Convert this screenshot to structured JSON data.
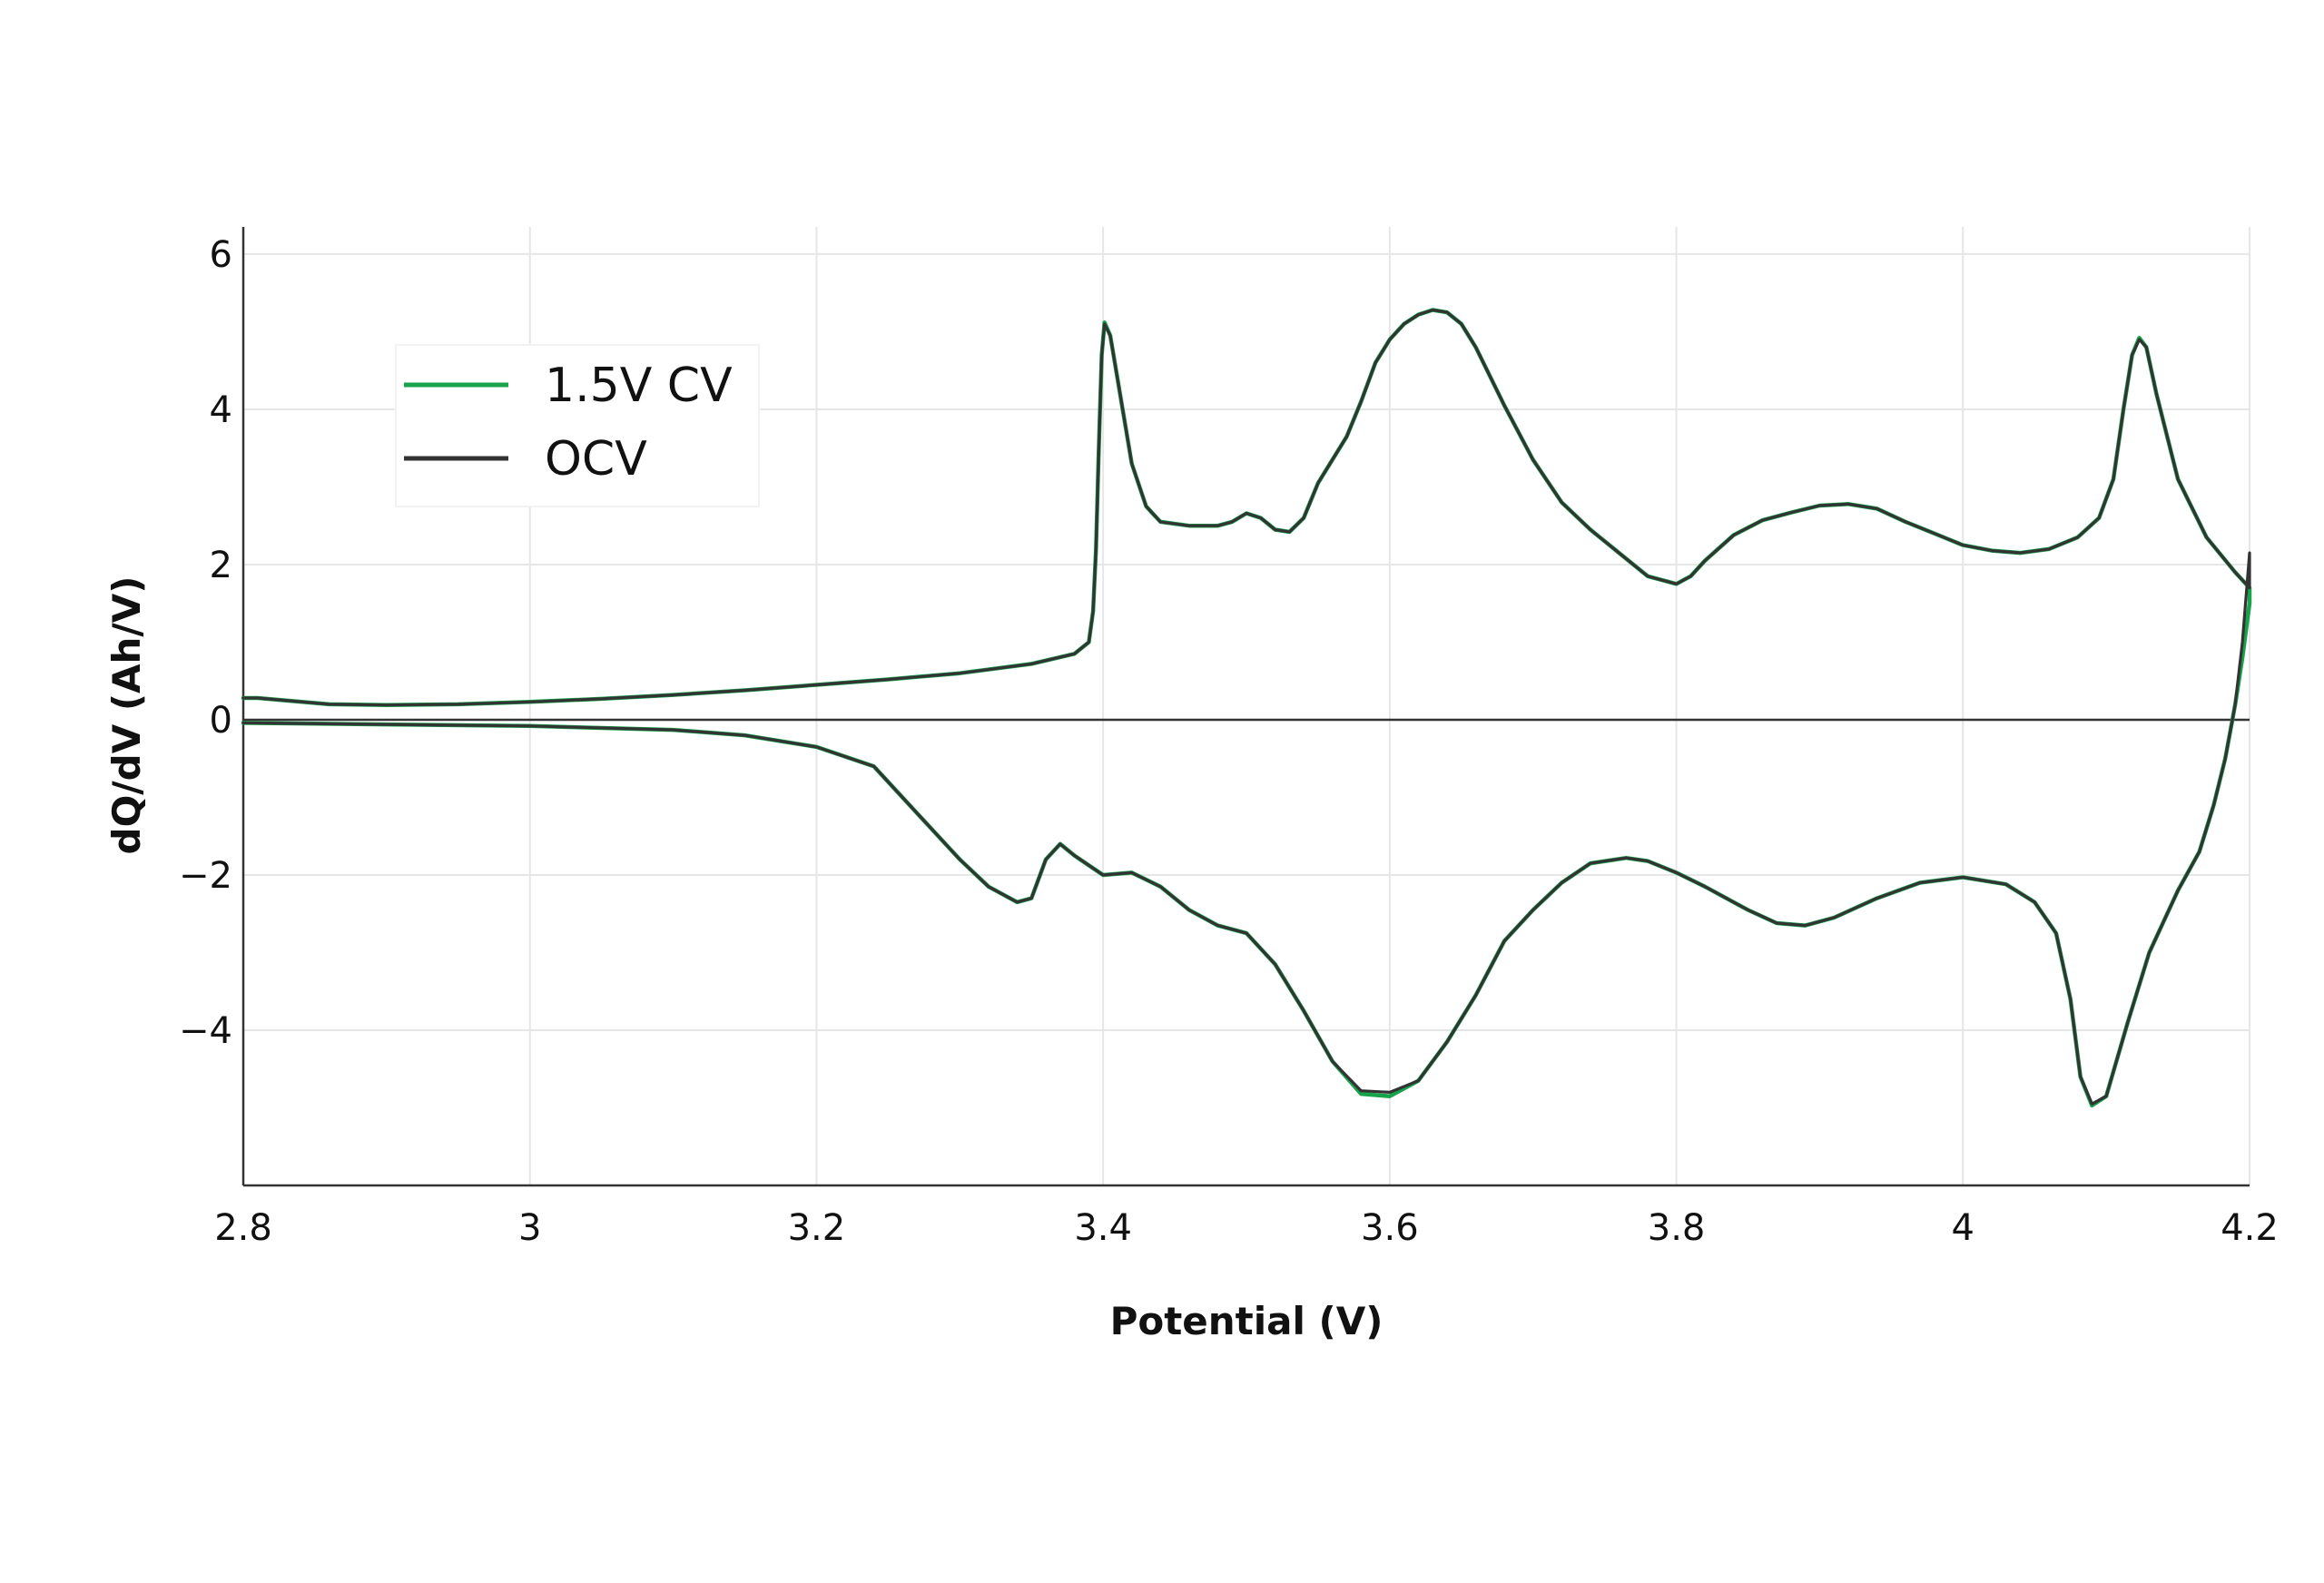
{
  "chart_data": {
    "type": "line",
    "title": "",
    "xlabel": "Potential (V)",
    "ylabel": "dQ/dV (Ah/V)",
    "xlim": [
      2.8,
      4.2
    ],
    "ylim": [
      -6,
      6.35
    ],
    "grid": true,
    "legend_position": "top-left",
    "x_ticks": [
      {
        "value": 2.8,
        "label": "2.8"
      },
      {
        "value": 3.0,
        "label": "3"
      },
      {
        "value": 3.2,
        "label": "3.2"
      },
      {
        "value": 3.4,
        "label": "3.4"
      },
      {
        "value": 3.6,
        "label": "3.6"
      },
      {
        "value": 3.8,
        "label": "3.8"
      },
      {
        "value": 4.0,
        "label": "4"
      },
      {
        "value": 4.2,
        "label": "4.2"
      }
    ],
    "y_ticks": [
      {
        "value": 6,
        "label": "6"
      },
      {
        "value": 4,
        "label": "4"
      },
      {
        "value": 2,
        "label": "2"
      },
      {
        "value": 0,
        "label": "0"
      },
      {
        "value": -2,
        "label": "−2"
      },
      {
        "value": -4,
        "label": "−4"
      }
    ],
    "series": [
      {
        "name": "1.5V CV",
        "color": "#16a34a",
        "width": 4.5,
        "points": [
          [
            2.8,
            0.28
          ],
          [
            2.81,
            0.28
          ],
          [
            2.86,
            0.2
          ],
          [
            2.9,
            0.19
          ],
          [
            2.95,
            0.2
          ],
          [
            3.0,
            0.23
          ],
          [
            3.05,
            0.27
          ],
          [
            3.1,
            0.32
          ],
          [
            3.15,
            0.38
          ],
          [
            3.2,
            0.45
          ],
          [
            3.25,
            0.52
          ],
          [
            3.3,
            0.6
          ],
          [
            3.35,
            0.72
          ],
          [
            3.38,
            0.85
          ],
          [
            3.39,
            1.0
          ],
          [
            3.393,
            1.4
          ],
          [
            3.395,
            2.2
          ],
          [
            3.397,
            3.5
          ],
          [
            3.399,
            4.7
          ],
          [
            3.401,
            5.12
          ],
          [
            3.405,
            4.95
          ],
          [
            3.41,
            4.4
          ],
          [
            3.42,
            3.3
          ],
          [
            3.43,
            2.75
          ],
          [
            3.44,
            2.55
          ],
          [
            3.46,
            2.5
          ],
          [
            3.48,
            2.5
          ],
          [
            3.49,
            2.55
          ],
          [
            3.5,
            2.66
          ],
          [
            3.51,
            2.6
          ],
          [
            3.52,
            2.45
          ],
          [
            3.53,
            2.42
          ],
          [
            3.54,
            2.6
          ],
          [
            3.55,
            3.05
          ],
          [
            3.57,
            3.65
          ],
          [
            3.58,
            4.1
          ],
          [
            3.59,
            4.6
          ],
          [
            3.6,
            4.9
          ],
          [
            3.61,
            5.1
          ],
          [
            3.62,
            5.22
          ],
          [
            3.63,
            5.28
          ],
          [
            3.64,
            5.25
          ],
          [
            3.65,
            5.1
          ],
          [
            3.66,
            4.8
          ],
          [
            3.68,
            4.05
          ],
          [
            3.7,
            3.35
          ],
          [
            3.72,
            2.8
          ],
          [
            3.74,
            2.45
          ],
          [
            3.76,
            2.15
          ],
          [
            3.78,
            1.85
          ],
          [
            3.8,
            1.75
          ],
          [
            3.81,
            1.85
          ],
          [
            3.82,
            2.05
          ],
          [
            3.84,
            2.38
          ],
          [
            3.86,
            2.57
          ],
          [
            3.88,
            2.67
          ],
          [
            3.9,
            2.76
          ],
          [
            3.92,
            2.78
          ],
          [
            3.94,
            2.72
          ],
          [
            3.96,
            2.55
          ],
          [
            3.98,
            2.4
          ],
          [
            4.0,
            2.25
          ],
          [
            4.02,
            2.18
          ],
          [
            4.04,
            2.15
          ],
          [
            4.06,
            2.2
          ],
          [
            4.08,
            2.35
          ],
          [
            4.095,
            2.6
          ],
          [
            4.105,
            3.1
          ],
          [
            4.112,
            4.0
          ],
          [
            4.118,
            4.7
          ],
          [
            4.123,
            4.92
          ],
          [
            4.128,
            4.8
          ],
          [
            4.135,
            4.2
          ],
          [
            4.15,
            3.1
          ],
          [
            4.17,
            2.35
          ],
          [
            4.19,
            1.9
          ],
          [
            4.2,
            1.7
          ],
          [
            4.2,
            1.5
          ],
          [
            4.195,
            0.8
          ],
          [
            4.19,
            0.2
          ],
          [
            4.188,
            0.0
          ],
          [
            4.183,
            -0.5
          ],
          [
            4.175,
            -1.1
          ],
          [
            4.165,
            -1.7
          ],
          [
            4.15,
            -2.2
          ],
          [
            4.13,
            -3.0
          ],
          [
            4.115,
            -3.9
          ],
          [
            4.1,
            -4.85
          ],
          [
            4.09,
            -4.97
          ],
          [
            4.082,
            -4.6
          ],
          [
            4.075,
            -3.6
          ],
          [
            4.065,
            -2.75
          ],
          [
            4.05,
            -2.35
          ],
          [
            4.03,
            -2.12
          ],
          [
            4.0,
            -2.03
          ],
          [
            3.97,
            -2.1
          ],
          [
            3.94,
            -2.3
          ],
          [
            3.91,
            -2.55
          ],
          [
            3.89,
            -2.65
          ],
          [
            3.87,
            -2.62
          ],
          [
            3.85,
            -2.45
          ],
          [
            3.82,
            -2.15
          ],
          [
            3.8,
            -1.97
          ],
          [
            3.78,
            -1.82
          ],
          [
            3.765,
            -1.78
          ],
          [
            3.74,
            -1.85
          ],
          [
            3.72,
            -2.1
          ],
          [
            3.7,
            -2.45
          ],
          [
            3.68,
            -2.85
          ],
          [
            3.66,
            -3.55
          ],
          [
            3.64,
            -4.15
          ],
          [
            3.62,
            -4.65
          ],
          [
            3.6,
            -4.85
          ],
          [
            3.58,
            -4.82
          ],
          [
            3.56,
            -4.4
          ],
          [
            3.54,
            -3.75
          ],
          [
            3.52,
            -3.15
          ],
          [
            3.5,
            -2.75
          ],
          [
            3.48,
            -2.65
          ],
          [
            3.46,
            -2.45
          ],
          [
            3.44,
            -2.15
          ],
          [
            3.42,
            -1.97
          ],
          [
            3.4,
            -2.0
          ],
          [
            3.38,
            -1.75
          ],
          [
            3.37,
            -1.6
          ],
          [
            3.36,
            -1.8
          ],
          [
            3.35,
            -2.3
          ],
          [
            3.34,
            -2.35
          ],
          [
            3.32,
            -2.15
          ],
          [
            3.3,
            -1.8
          ],
          [
            3.27,
            -1.2
          ],
          [
            3.24,
            -0.6
          ],
          [
            3.2,
            -0.35
          ],
          [
            3.15,
            -0.2
          ],
          [
            3.1,
            -0.13
          ],
          [
            3.0,
            -0.08
          ],
          [
            2.9,
            -0.06
          ],
          [
            2.8,
            -0.04
          ]
        ]
      },
      {
        "name": "OCV",
        "color": "#333333",
        "width": 3.2,
        "points": [
          [
            2.8,
            0.28
          ],
          [
            2.81,
            0.28
          ],
          [
            2.86,
            0.2
          ],
          [
            2.9,
            0.19
          ],
          [
            2.95,
            0.2
          ],
          [
            3.0,
            0.23
          ],
          [
            3.05,
            0.27
          ],
          [
            3.1,
            0.32
          ],
          [
            3.15,
            0.38
          ],
          [
            3.2,
            0.45
          ],
          [
            3.25,
            0.52
          ],
          [
            3.3,
            0.6
          ],
          [
            3.35,
            0.72
          ],
          [
            3.38,
            0.85
          ],
          [
            3.39,
            1.0
          ],
          [
            3.393,
            1.4
          ],
          [
            3.395,
            2.2
          ],
          [
            3.397,
            3.5
          ],
          [
            3.399,
            4.7
          ],
          [
            3.401,
            5.1
          ],
          [
            3.405,
            4.95
          ],
          [
            3.41,
            4.4
          ],
          [
            3.42,
            3.3
          ],
          [
            3.43,
            2.75
          ],
          [
            3.44,
            2.55
          ],
          [
            3.46,
            2.5
          ],
          [
            3.48,
            2.5
          ],
          [
            3.49,
            2.55
          ],
          [
            3.5,
            2.66
          ],
          [
            3.51,
            2.6
          ],
          [
            3.52,
            2.45
          ],
          [
            3.53,
            2.42
          ],
          [
            3.54,
            2.6
          ],
          [
            3.55,
            3.05
          ],
          [
            3.57,
            3.65
          ],
          [
            3.58,
            4.1
          ],
          [
            3.59,
            4.6
          ],
          [
            3.6,
            4.9
          ],
          [
            3.61,
            5.1
          ],
          [
            3.62,
            5.22
          ],
          [
            3.63,
            5.28
          ],
          [
            3.64,
            5.25
          ],
          [
            3.65,
            5.1
          ],
          [
            3.66,
            4.8
          ],
          [
            3.68,
            4.05
          ],
          [
            3.7,
            3.35
          ],
          [
            3.72,
            2.8
          ],
          [
            3.74,
            2.45
          ],
          [
            3.76,
            2.15
          ],
          [
            3.78,
            1.85
          ],
          [
            3.8,
            1.75
          ],
          [
            3.81,
            1.85
          ],
          [
            3.82,
            2.05
          ],
          [
            3.84,
            2.38
          ],
          [
            3.86,
            2.57
          ],
          [
            3.88,
            2.67
          ],
          [
            3.9,
            2.76
          ],
          [
            3.92,
            2.78
          ],
          [
            3.94,
            2.72
          ],
          [
            3.96,
            2.55
          ],
          [
            3.98,
            2.4
          ],
          [
            4.0,
            2.25
          ],
          [
            4.02,
            2.18
          ],
          [
            4.04,
            2.15
          ],
          [
            4.06,
            2.2
          ],
          [
            4.08,
            2.35
          ],
          [
            4.095,
            2.6
          ],
          [
            4.105,
            3.1
          ],
          [
            4.112,
            4.0
          ],
          [
            4.118,
            4.7
          ],
          [
            4.123,
            4.9
          ],
          [
            4.128,
            4.8
          ],
          [
            4.135,
            4.2
          ],
          [
            4.15,
            3.1
          ],
          [
            4.17,
            2.35
          ],
          [
            4.19,
            1.9
          ],
          [
            4.2,
            1.7
          ],
          [
            4.2,
            2.15
          ],
          [
            4.195,
            1.0
          ],
          [
            4.19,
            0.2
          ],
          [
            4.188,
            0.0
          ],
          [
            4.183,
            -0.5
          ],
          [
            4.175,
            -1.1
          ],
          [
            4.165,
            -1.7
          ],
          [
            4.15,
            -2.2
          ],
          [
            4.13,
            -3.0
          ],
          [
            4.115,
            -3.9
          ],
          [
            4.1,
            -4.85
          ],
          [
            4.09,
            -4.95
          ],
          [
            4.082,
            -4.6
          ],
          [
            4.075,
            -3.6
          ],
          [
            4.065,
            -2.75
          ],
          [
            4.05,
            -2.35
          ],
          [
            4.03,
            -2.12
          ],
          [
            4.0,
            -2.03
          ],
          [
            3.97,
            -2.1
          ],
          [
            3.94,
            -2.3
          ],
          [
            3.91,
            -2.55
          ],
          [
            3.89,
            -2.65
          ],
          [
            3.87,
            -2.62
          ],
          [
            3.85,
            -2.45
          ],
          [
            3.82,
            -2.15
          ],
          [
            3.8,
            -1.97
          ],
          [
            3.78,
            -1.82
          ],
          [
            3.765,
            -1.78
          ],
          [
            3.74,
            -1.85
          ],
          [
            3.72,
            -2.1
          ],
          [
            3.7,
            -2.45
          ],
          [
            3.68,
            -2.85
          ],
          [
            3.66,
            -3.55
          ],
          [
            3.64,
            -4.15
          ],
          [
            3.62,
            -4.65
          ],
          [
            3.6,
            -4.8
          ],
          [
            3.58,
            -4.78
          ],
          [
            3.56,
            -4.4
          ],
          [
            3.54,
            -3.75
          ],
          [
            3.52,
            -3.15
          ],
          [
            3.5,
            -2.75
          ],
          [
            3.48,
            -2.65
          ],
          [
            3.46,
            -2.45
          ],
          [
            3.44,
            -2.15
          ],
          [
            3.42,
            -1.97
          ],
          [
            3.4,
            -2.0
          ],
          [
            3.38,
            -1.75
          ],
          [
            3.37,
            -1.6
          ],
          [
            3.36,
            -1.8
          ],
          [
            3.35,
            -2.3
          ],
          [
            3.34,
            -2.35
          ],
          [
            3.32,
            -2.15
          ],
          [
            3.3,
            -1.8
          ],
          [
            3.27,
            -1.2
          ],
          [
            3.24,
            -0.6
          ],
          [
            3.2,
            -0.35
          ],
          [
            3.15,
            -0.2
          ],
          [
            3.1,
            -0.13
          ],
          [
            3.0,
            -0.08
          ],
          [
            2.9,
            -0.06
          ],
          [
            2.8,
            -0.04
          ]
        ]
      }
    ]
  }
}
